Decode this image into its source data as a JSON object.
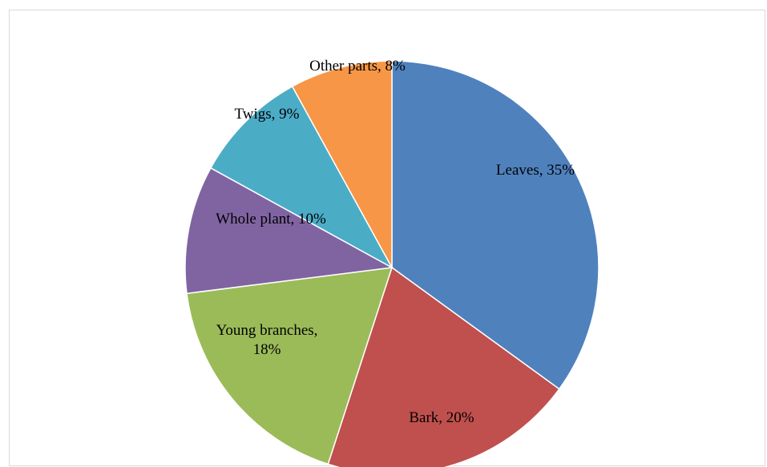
{
  "chart_data": {
    "type": "pie",
    "title": "",
    "legend": "none",
    "start_angle_deg": 0,
    "direction": "clockwise",
    "slices": [
      {
        "label": "Leaves",
        "value": 35,
        "text": [
          "Leaves, 35%"
        ],
        "color": "#4F81BD"
      },
      {
        "label": "Bark",
        "value": 20,
        "text": [
          "Bark, 20%"
        ],
        "color": "#C0504D"
      },
      {
        "label": "Young branches",
        "value": 18,
        "text": [
          "Young branches,",
          "18%"
        ],
        "color": "#9BBB59"
      },
      {
        "label": "Whole plant",
        "value": 10,
        "text": [
          "Whole plant, 10%"
        ],
        "color": "#8064A2"
      },
      {
        "label": "Twigs",
        "value": 9,
        "text": [
          "Twigs, 9%"
        ],
        "color": "#4BACC6"
      },
      {
        "label": "Other parts",
        "value": 8,
        "text": [
          "Other parts, 8%"
        ],
        "color": "#F79646"
      }
    ]
  }
}
